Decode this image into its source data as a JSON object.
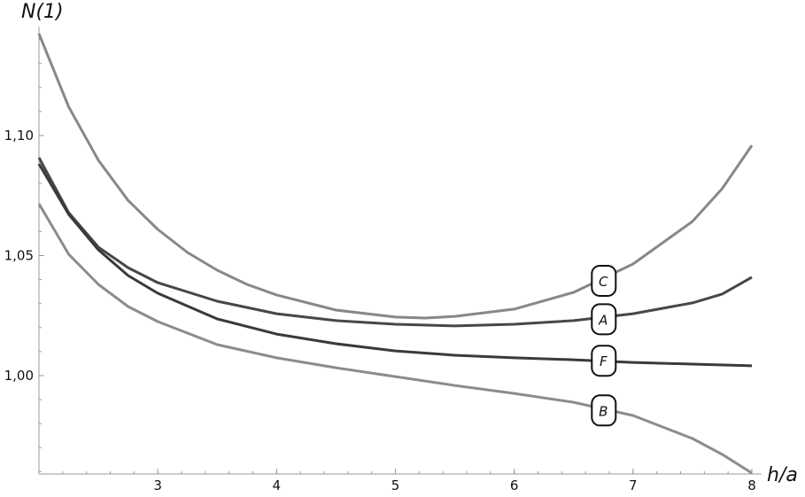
{
  "chart_data": {
    "type": "line",
    "title": "",
    "xlabel": "h/a",
    "ylabel": "N(1)",
    "xlim": [
      2,
      8
    ],
    "ylim": [
      0.959,
      1.153
    ],
    "grid": false,
    "x_ticks": [
      {
        "value": 3,
        "label": "3"
      },
      {
        "value": 4,
        "label": "4"
      },
      {
        "value": 5,
        "label": "5"
      },
      {
        "value": 6,
        "label": "6"
      },
      {
        "value": 7,
        "label": "7"
      },
      {
        "value": 8,
        "label": "8"
      }
    ],
    "y_ticks": [
      {
        "value": 1.0,
        "label": "1,00"
      },
      {
        "value": 1.05,
        "label": "1,05"
      },
      {
        "value": 1.1,
        "label": "1,10"
      }
    ],
    "x_minor_step": 0.2,
    "y_minor_step": 0.01,
    "label_x": 6.75,
    "series": [
      {
        "name": "C",
        "color": "#888888",
        "label_y": 1.0395,
        "x": [
          2,
          2.25,
          2.5,
          2.75,
          3,
          3.25,
          3.5,
          3.75,
          4,
          4.5,
          5,
          5.25,
          5.5,
          6,
          6.5,
          7,
          7.5,
          7.75,
          8
        ],
        "y": [
          1.1424,
          1.112,
          1.0897,
          1.073,
          1.0609,
          1.0513,
          1.0439,
          1.038,
          1.0336,
          1.0273,
          1.0244,
          1.024,
          1.0247,
          1.0277,
          1.0347,
          1.0465,
          1.0642,
          1.0779,
          1.0959
        ]
      },
      {
        "name": "A",
        "color": "#474747",
        "label_y": 1.0235,
        "x": [
          2,
          2.25,
          2.5,
          2.75,
          3,
          3.5,
          4,
          4.5,
          5,
          5.5,
          6,
          6.5,
          7,
          7.5,
          7.75,
          8
        ],
        "y": [
          1.0908,
          1.0679,
          1.0535,
          1.045,
          1.0387,
          1.031,
          1.0258,
          1.0229,
          1.0214,
          1.0207,
          1.0214,
          1.0229,
          1.0258,
          1.0303,
          1.034,
          1.041
        ]
      },
      {
        "name": "F",
        "color": "#3a3a3a",
        "label_y": 1.0062,
        "x": [
          2,
          2.25,
          2.5,
          2.75,
          3,
          3.5,
          4,
          4.5,
          5,
          5.5,
          6,
          6.5,
          7,
          7.5,
          8
        ],
        "y": [
          1.0882,
          1.0672,
          1.0524,
          1.0417,
          1.0343,
          1.0236,
          1.0173,
          1.0133,
          1.0103,
          1.0085,
          1.0074,
          1.0066,
          1.0055,
          1.0048,
          1.0041
        ]
      },
      {
        "name": "B",
        "color": "#8c8c8c",
        "label_y": 0.9855,
        "x": [
          2,
          2.25,
          2.5,
          2.75,
          3,
          3.5,
          4,
          4.5,
          5,
          5.5,
          6,
          6.5,
          7,
          7.5,
          7.75,
          8
        ],
        "y": [
          1.0716,
          1.0506,
          1.038,
          1.0288,
          1.0225,
          1.0129,
          1.0074,
          1.0033,
          0.9996,
          0.9959,
          0.9926,
          0.9889,
          0.9834,
          0.9738,
          0.9672,
          0.9594
        ]
      }
    ]
  }
}
